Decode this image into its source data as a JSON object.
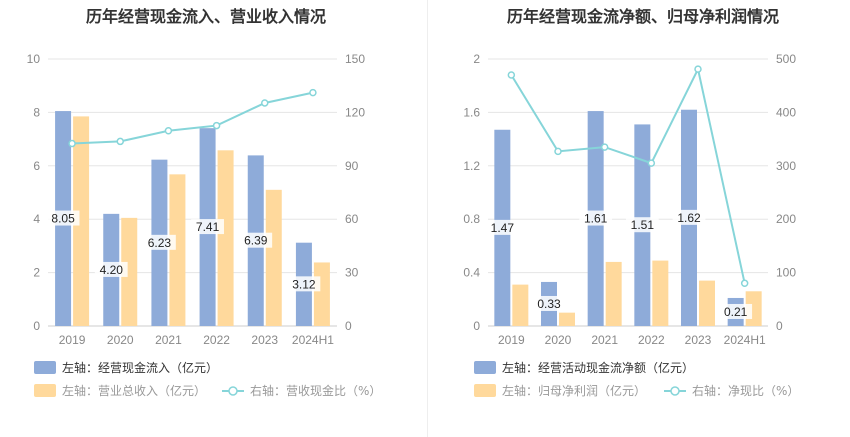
{
  "colors": {
    "blue": "#8eabd9",
    "orange": "#ffd99c",
    "line": "#86d5d9",
    "axis_text": "#888888",
    "title": "#333333",
    "grid": "#e5e5e5"
  },
  "chart_data": [
    {
      "type": "bar",
      "title": "历年经营现金流入、营业收入情况",
      "categories": [
        "2019",
        "2020",
        "2021",
        "2022",
        "2023",
        "2024H1"
      ],
      "left_ylim": [
        0,
        10
      ],
      "left_ticks": [
        0,
        2,
        4,
        6,
        8,
        10
      ],
      "right_ylim": [
        0,
        150
      ],
      "right_ticks": [
        0,
        30,
        60,
        90,
        120,
        150
      ],
      "grid": true,
      "legend_position": "bottom-left",
      "series": [
        {
          "name": "左轴：经营现金流入（亿元）",
          "kind": "bar",
          "axis": "left",
          "color": "#8eabd9",
          "values": [
            8.05,
            4.2,
            6.23,
            7.41,
            6.39,
            3.12
          ],
          "labels": [
            "8.05",
            "4.20",
            "6.23",
            "7.41",
            "6.39",
            "3.12"
          ]
        },
        {
          "name": "左轴：营业总收入（亿元）",
          "kind": "bar",
          "axis": "left",
          "color": "#ffd99c",
          "values": [
            7.85,
            4.05,
            5.68,
            6.58,
            5.1,
            2.38
          ]
        },
        {
          "name": "右轴：营收现金比（%）",
          "kind": "line",
          "axis": "right",
          "color": "#86d5d9",
          "values": [
            102.5,
            103.7,
            109.7,
            112.6,
            125.3,
            131.1
          ]
        }
      ]
    },
    {
      "type": "bar",
      "title": "历年经营现金流净额、归母净利润情况",
      "categories": [
        "2019",
        "2020",
        "2021",
        "2022",
        "2023",
        "2024H1"
      ],
      "left_ylim": [
        0,
        2
      ],
      "left_ticks": [
        "0",
        "0.4",
        "0.8",
        "1.2",
        "1.6",
        "2"
      ],
      "right_ylim": [
        0,
        500
      ],
      "right_ticks": [
        0,
        100,
        200,
        300,
        400,
        500
      ],
      "grid": true,
      "legend_position": "bottom-left",
      "series": [
        {
          "name": "左轴：经营活动现金流净额（亿元）",
          "kind": "bar",
          "axis": "left",
          "color": "#8eabd9",
          "values": [
            1.47,
            0.33,
            1.61,
            1.51,
            1.62,
            0.21
          ],
          "labels": [
            "1.47",
            "0.33",
            "1.61",
            "1.51",
            "1.62",
            "0.21"
          ]
        },
        {
          "name": "左轴：归母净利润（亿元）",
          "kind": "bar",
          "axis": "left",
          "color": "#ffd99c",
          "values": [
            0.31,
            0.1,
            0.48,
            0.49,
            0.34,
            0.26
          ]
        },
        {
          "name": "右轴：净现比（%）",
          "kind": "line",
          "axis": "right",
          "color": "#86d5d9",
          "values": [
            470,
            327,
            335,
            305,
            481,
            80
          ]
        }
      ]
    }
  ]
}
